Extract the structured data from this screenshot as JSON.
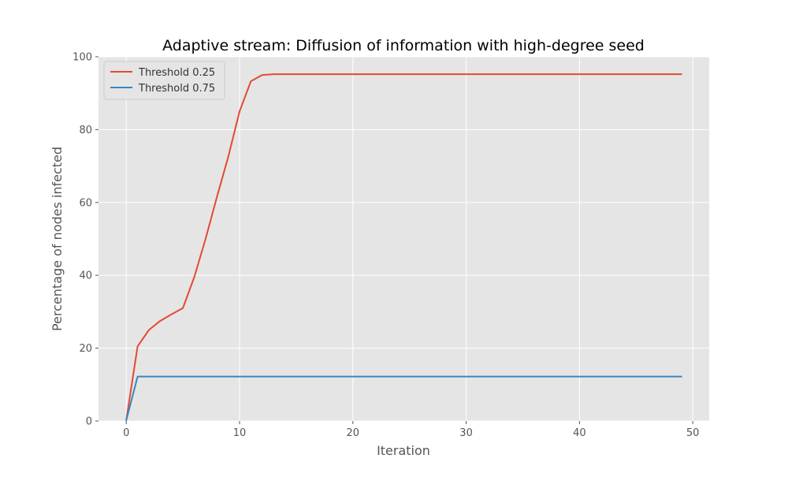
{
  "chart_data": {
    "type": "line",
    "title": "Adaptive stream: Diffusion of information with high-degree seed",
    "xlabel": "Iteration",
    "ylabel": "Percentage of nodes infected",
    "xlim": [
      -2.45,
      51.45
    ],
    "ylim": [
      0,
      100
    ],
    "xticks": [
      0,
      10,
      20,
      30,
      40,
      50
    ],
    "xtick_labels": [
      "0",
      "10",
      "20",
      "30",
      "40",
      "50"
    ],
    "yticks": [
      0,
      20,
      40,
      60,
      80,
      100
    ],
    "ytick_labels": [
      "0",
      "20",
      "40",
      "60",
      "80",
      "100"
    ],
    "grid": true,
    "legend_position": "top-left",
    "series": [
      {
        "name": "Threshold 0.25",
        "color": "#E24A33",
        "x": [
          0,
          1,
          2,
          3,
          4,
          5,
          6,
          7,
          8,
          9,
          10,
          11,
          12,
          13,
          14,
          15,
          16,
          17,
          18,
          19,
          20,
          21,
          22,
          23,
          24,
          25,
          26,
          27,
          28,
          29,
          30,
          31,
          32,
          33,
          34,
          35,
          36,
          37,
          38,
          39,
          40,
          41,
          42,
          43,
          44,
          45,
          46,
          47,
          48,
          49
        ],
        "values": [
          0.2,
          20.5,
          25,
          27.5,
          29.3,
          31,
          39.5,
          50,
          61.5,
          72.5,
          85,
          93.3,
          95,
          95.2,
          95.2,
          95.2,
          95.2,
          95.2,
          95.2,
          95.2,
          95.2,
          95.2,
          95.2,
          95.2,
          95.2,
          95.2,
          95.2,
          95.2,
          95.2,
          95.2,
          95.2,
          95.2,
          95.2,
          95.2,
          95.2,
          95.2,
          95.2,
          95.2,
          95.2,
          95.2,
          95.2,
          95.2,
          95.2,
          95.2,
          95.2,
          95.2,
          95.2,
          95.2,
          95.2,
          95.2
        ]
      },
      {
        "name": "Threshold 0.75",
        "color": "#348ABD",
        "x": [
          0,
          1,
          2,
          3,
          4,
          5,
          6,
          7,
          8,
          9,
          10,
          11,
          12,
          13,
          14,
          15,
          16,
          17,
          18,
          19,
          20,
          21,
          22,
          23,
          24,
          25,
          26,
          27,
          28,
          29,
          30,
          31,
          32,
          33,
          34,
          35,
          36,
          37,
          38,
          39,
          40,
          41,
          42,
          43,
          44,
          45,
          46,
          47,
          48,
          49
        ],
        "values": [
          0.2,
          12.2,
          12.2,
          12.2,
          12.2,
          12.2,
          12.2,
          12.2,
          12.2,
          12.2,
          12.2,
          12.2,
          12.2,
          12.2,
          12.2,
          12.2,
          12.2,
          12.2,
          12.2,
          12.2,
          12.2,
          12.2,
          12.2,
          12.2,
          12.2,
          12.2,
          12.2,
          12.2,
          12.2,
          12.2,
          12.2,
          12.2,
          12.2,
          12.2,
          12.2,
          12.2,
          12.2,
          12.2,
          12.2,
          12.2,
          12.2,
          12.2,
          12.2,
          12.2,
          12.2,
          12.2,
          12.2,
          12.2,
          12.2,
          12.2
        ]
      }
    ]
  },
  "colors": {
    "plot_background": "#E5E5E5",
    "grid": "#FFFFFF",
    "tick_text": "#555555",
    "label_text": "#555555",
    "title_text": "#000000"
  }
}
